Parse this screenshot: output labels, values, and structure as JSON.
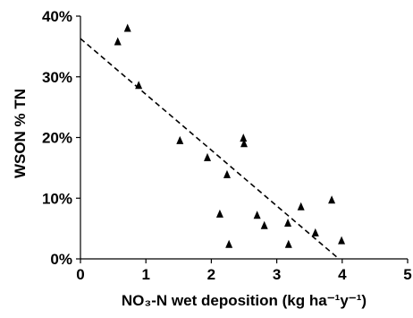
{
  "chart_data": {
    "type": "scatter",
    "title": "",
    "xlabel": "NO₃-N wet deposition (kg ha⁻¹y⁻¹)",
    "ylabel": "WSON % TN",
    "xlim": [
      0,
      5
    ],
    "ylim": [
      0,
      40
    ],
    "x_ticks": [
      0,
      1,
      2,
      3,
      4,
      5
    ],
    "x_tick_labels": [
      "0",
      "1",
      "2",
      "3",
      "4",
      "5"
    ],
    "y_ticks": [
      0,
      10,
      20,
      30,
      40
    ],
    "y_tick_labels": [
      "0%",
      "10%",
      "20%",
      "30%",
      "40%"
    ],
    "grid": false,
    "legend": "none",
    "marker": "triangle",
    "marker_color": "#000000",
    "points": [
      {
        "x": 0.57,
        "y": 35.8
      },
      {
        "x": 0.72,
        "y": 38.0
      },
      {
        "x": 0.89,
        "y": 28.6
      },
      {
        "x": 1.52,
        "y": 19.5
      },
      {
        "x": 1.94,
        "y": 16.7
      },
      {
        "x": 2.13,
        "y": 7.4
      },
      {
        "x": 2.24,
        "y": 13.9
      },
      {
        "x": 2.27,
        "y": 2.4
      },
      {
        "x": 2.49,
        "y": 19.9
      },
      {
        "x": 2.5,
        "y": 19.0
      },
      {
        "x": 2.7,
        "y": 7.2
      },
      {
        "x": 2.81,
        "y": 5.5
      },
      {
        "x": 3.17,
        "y": 5.9
      },
      {
        "x": 3.18,
        "y": 2.4
      },
      {
        "x": 3.37,
        "y": 8.6
      },
      {
        "x": 3.59,
        "y": 4.3
      },
      {
        "x": 3.84,
        "y": 9.7
      },
      {
        "x": 3.99,
        "y": 3.0
      }
    ],
    "trendline": {
      "style": "dashed",
      "color": "#000000",
      "x": [
        0,
        3.95
      ],
      "y": [
        36.3,
        0
      ]
    }
  }
}
